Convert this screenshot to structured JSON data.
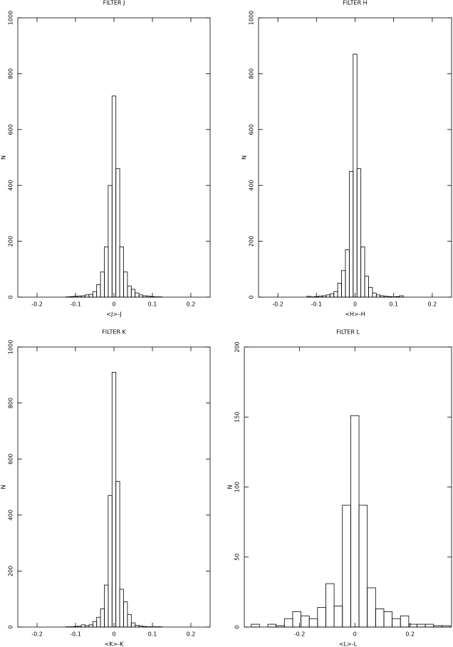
{
  "chart_data": [
    {
      "type": "histogram",
      "title": "FILTER J",
      "xlabel": "<J>-J",
      "ylabel": "N",
      "bins": [
        -0.125,
        -0.115,
        -0.105,
        -0.095,
        -0.085,
        -0.075,
        -0.065,
        -0.055,
        -0.045,
        -0.035,
        -0.025,
        -0.015,
        -0.005,
        0.005,
        0.015,
        0.025,
        0.035,
        0.045,
        0.055,
        0.065,
        0.075,
        0.085,
        0.095,
        0.105,
        0.115,
        0.125
      ],
      "counts": [
        1,
        2,
        3,
        4,
        5,
        8,
        10,
        20,
        45,
        90,
        180,
        400,
        720,
        460,
        180,
        90,
        40,
        28,
        15,
        8,
        5,
        4,
        2,
        1,
        1
      ],
      "xlim": [
        -0.25,
        0.25
      ],
      "ylim": [
        0,
        1000
      ],
      "xticks": [
        -0.2,
        -0.1,
        0,
        0.1,
        0.2
      ],
      "yticks": [
        0,
        200,
        400,
        600,
        800,
        1000
      ]
    },
    {
      "type": "histogram",
      "title": "FILTER H",
      "xlabel": "<H>-H",
      "ylabel": "N",
      "bins": [
        -0.125,
        -0.115,
        -0.105,
        -0.095,
        -0.085,
        -0.075,
        -0.065,
        -0.055,
        -0.045,
        -0.035,
        -0.025,
        -0.015,
        -0.005,
        0.005,
        0.015,
        0.025,
        0.035,
        0.045,
        0.055,
        0.065,
        0.075,
        0.085,
        0.095,
        0.105,
        0.115,
        0.125
      ],
      "counts": [
        3,
        1,
        2,
        4,
        5,
        8,
        12,
        20,
        50,
        95,
        170,
        450,
        870,
        460,
        180,
        75,
        35,
        15,
        8,
        5,
        3,
        2,
        1,
        2,
        5
      ],
      "xlim": [
        -0.25,
        0.25
      ],
      "ylim": [
        0,
        1000
      ],
      "xticks": [
        -0.2,
        -0.1,
        0,
        0.1,
        0.2
      ],
      "yticks": [
        0,
        200,
        400,
        600,
        800,
        1000
      ]
    },
    {
      "type": "histogram",
      "title": "FILTER K",
      "xlabel": "<K>-K",
      "ylabel": "N",
      "bins": [
        -0.125,
        -0.115,
        -0.105,
        -0.095,
        -0.085,
        -0.075,
        -0.065,
        -0.055,
        -0.045,
        -0.035,
        -0.025,
        -0.015,
        -0.005,
        0.005,
        0.015,
        0.025,
        0.035,
        0.045,
        0.055,
        0.065,
        0.075,
        0.085,
        0.095,
        0.105,
        0.115,
        0.125
      ],
      "counts": [
        1,
        1,
        2,
        3,
        8,
        5,
        8,
        20,
        35,
        65,
        150,
        470,
        910,
        520,
        135,
        90,
        45,
        15,
        6,
        4,
        2,
        1,
        1,
        1,
        1
      ],
      "xlim": [
        -0.25,
        0.25
      ],
      "ylim": [
        0,
        1000
      ],
      "xticks": [
        -0.2,
        -0.1,
        0,
        0.1,
        0.2
      ],
      "yticks": [
        0,
        200,
        400,
        600,
        800,
        1000
      ]
    },
    {
      "type": "histogram",
      "title": "FILTER L",
      "xlabel": "<L>-L",
      "ylabel": "N",
      "bins": [
        -0.375,
        -0.345,
        -0.315,
        -0.285,
        -0.255,
        -0.225,
        -0.195,
        -0.165,
        -0.135,
        -0.105,
        -0.075,
        -0.045,
        -0.015,
        0.015,
        0.045,
        0.075,
        0.105,
        0.135,
        0.165,
        0.195,
        0.225,
        0.255,
        0.285,
        0.315,
        0.345
      ],
      "counts": [
        2,
        0,
        2,
        1,
        6,
        11,
        8,
        6,
        14,
        31,
        15,
        87,
        151,
        87,
        28,
        13,
        11,
        6,
        8,
        2,
        2,
        2,
        1,
        1
      ],
      "xlim": [
        -0.4,
        0.35
      ],
      "ylim": [
        0,
        200
      ],
      "xticks": [
        -0.2,
        0,
        0.2
      ],
      "yticks": [
        0,
        50,
        100,
        150,
        200
      ]
    }
  ]
}
